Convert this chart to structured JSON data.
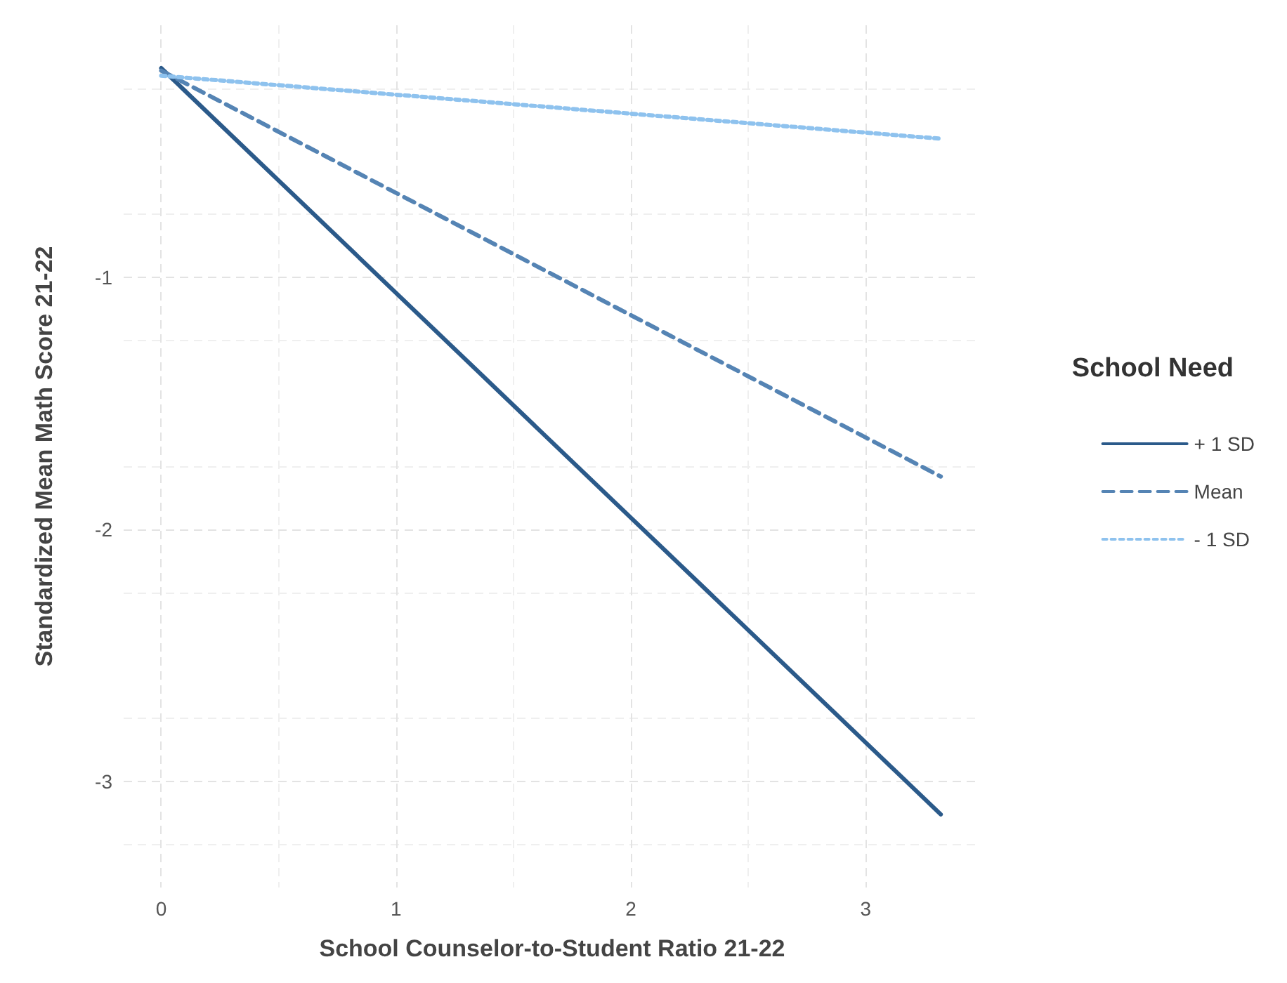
{
  "chart_data": {
    "type": "line",
    "xlabel": "School Counselor-to-Student Ratio 21-22",
    "ylabel": "Standardized Mean Math Score 21-22",
    "legend_title": "School Need",
    "legend": "right",
    "grid": true,
    "marker": "none",
    "xlim": [
      -0.16,
      3.49
    ],
    "xticks": [
      0,
      1,
      2,
      3
    ],
    "ylim": [
      -3.42,
      0
    ],
    "yticks": [
      -3,
      -2,
      -1
    ],
    "x": [
      0,
      3.32
    ],
    "series": [
      {
        "name": "+ 1 SD",
        "color": "#2b5a8a",
        "line_style": "solid",
        "values": [
          -0.17,
          -3.13
        ]
      },
      {
        "name": "Mean",
        "color": "#5584b4",
        "line_style": "dashed",
        "values": [
          -0.18,
          -1.79
        ]
      },
      {
        "name": "- 1 SD",
        "color": "#8ec2ee",
        "line_style": "dotted",
        "values": [
          -0.2,
          -0.45
        ]
      }
    ]
  }
}
